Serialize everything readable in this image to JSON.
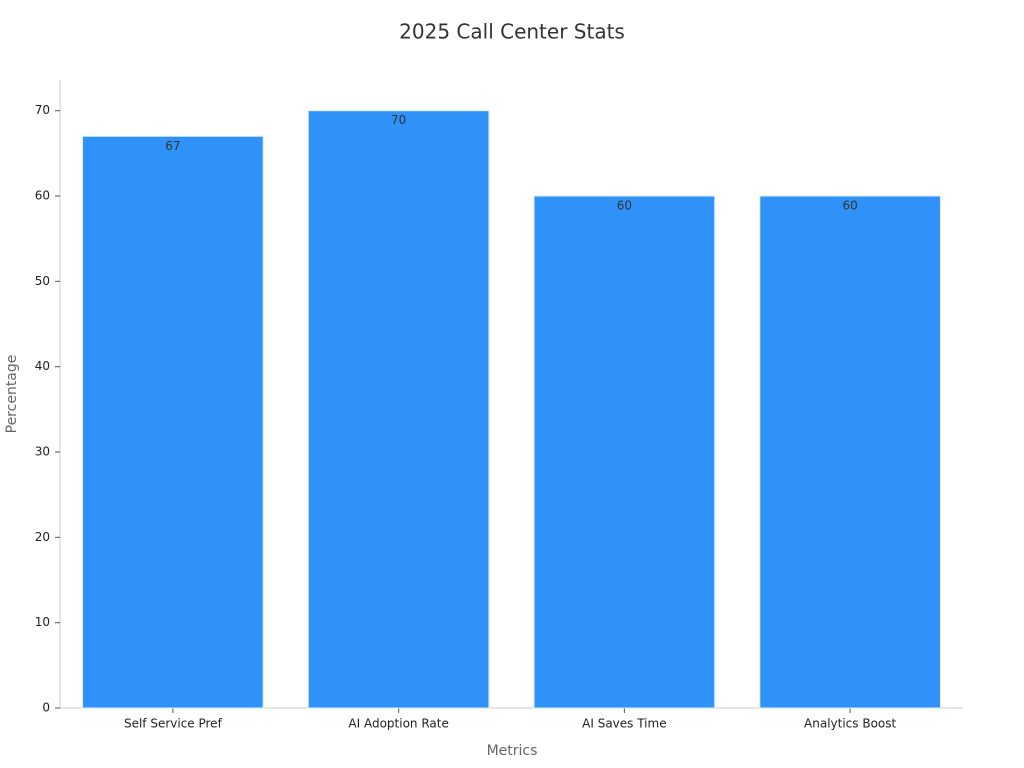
{
  "chart_data": {
    "type": "bar",
    "title": "2025 Call Center Stats",
    "x_label": "Metrics",
    "y_label": "Percentage",
    "categories": [
      "Self Service Pref",
      "AI Adoption Rate",
      "AI Saves Time",
      "Analytics Boost"
    ],
    "values": [
      67,
      70,
      60,
      60
    ],
    "color": "#2f92f8",
    "ylim": [
      0,
      73.6
    ],
    "yticks": [
      0,
      10,
      20,
      30,
      40,
      50,
      60,
      70
    ],
    "grid": false
  }
}
